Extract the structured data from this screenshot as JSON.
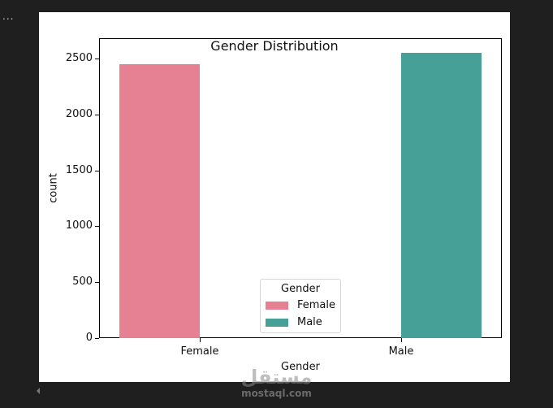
{
  "toolbar": {
    "more_label": "..."
  },
  "chart_data": {
    "type": "bar",
    "title": "Gender Distribution",
    "xlabel": "Gender",
    "ylabel": "count",
    "categories": [
      "Female",
      "Male"
    ],
    "values": [
      2449,
      2551
    ],
    "colors": [
      "#e68194",
      "#47a098"
    ],
    "ylim": [
      0,
      2680
    ],
    "yticks": [
      0,
      500,
      1000,
      1500,
      2000,
      2500
    ],
    "grid": false,
    "legend": {
      "title": "Gender",
      "position": "lower center",
      "entries": [
        {
          "label": "Female",
          "color": "#e68194"
        },
        {
          "label": "Male",
          "color": "#47a098"
        }
      ]
    }
  },
  "labels": {
    "title": "Gender Distribution",
    "xlabel": "Gender",
    "ylabel": "count",
    "yticks": [
      "0",
      "500",
      "1000",
      "1500",
      "2000",
      "2500"
    ],
    "xticks": [
      "Female",
      "Male"
    ],
    "legend_title": "Gender",
    "legend_female": "Female",
    "legend_male": "Male"
  },
  "watermark": {
    "arabic": "مستقل",
    "url": "mostaql.com"
  }
}
